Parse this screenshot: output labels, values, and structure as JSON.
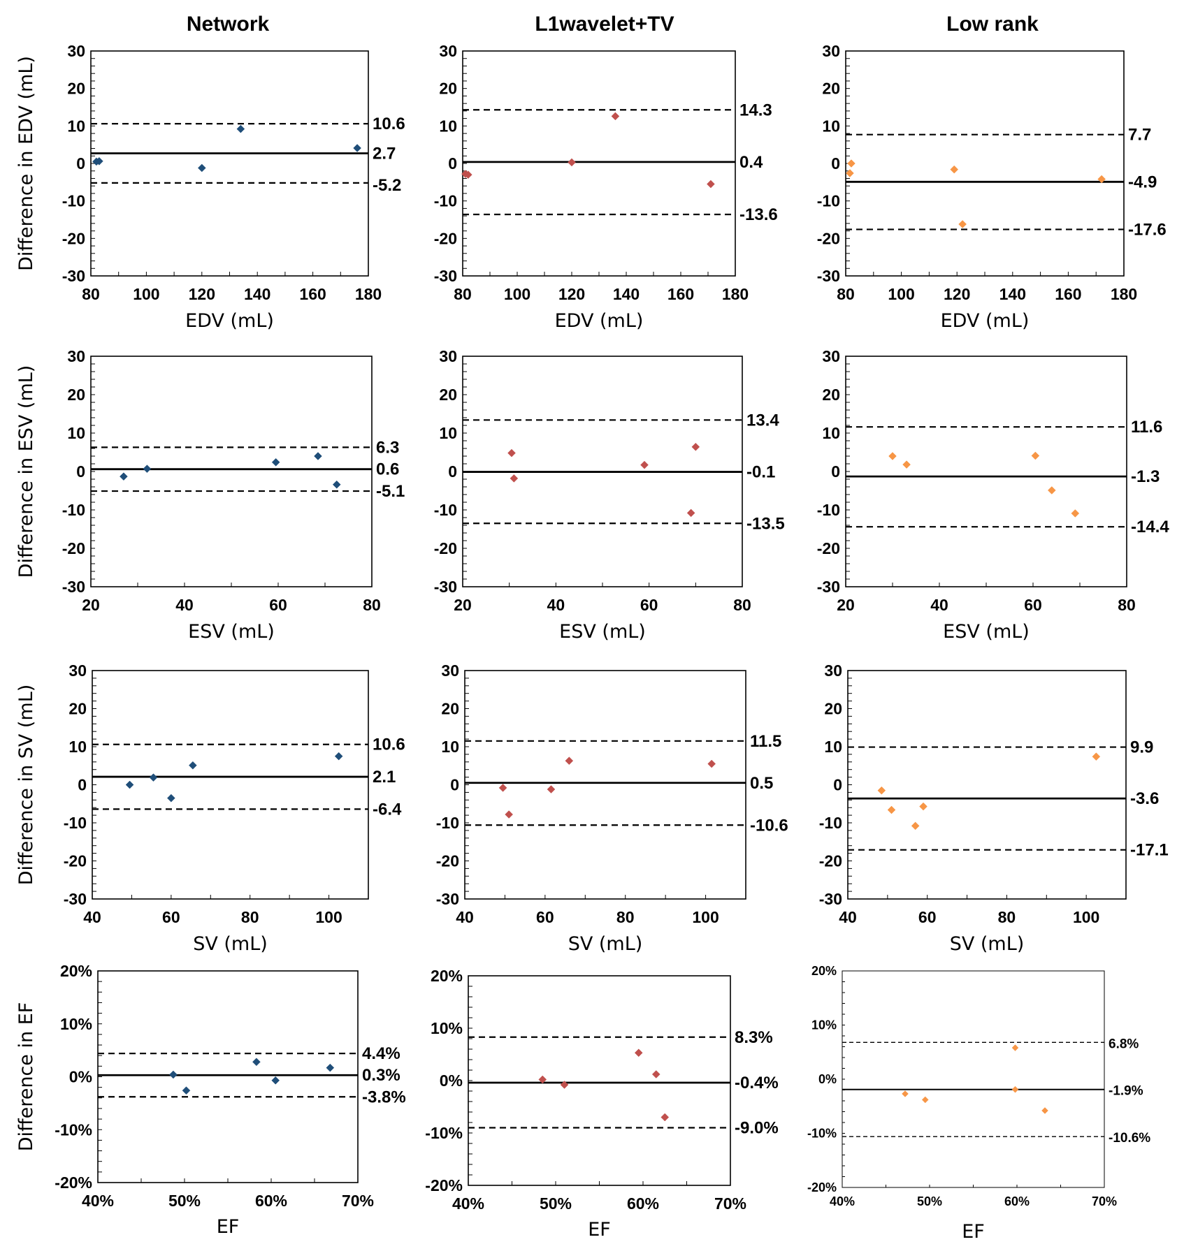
{
  "figure": {
    "columns": [
      "Network",
      "L1wavelet+TV",
      "Low rank"
    ]
  },
  "colors": {
    "network": "#1f4e79",
    "l1wavelet_tv": "#c0504d",
    "low_rank": "#f79646",
    "axis": "#000000"
  },
  "chart_data": [
    {
      "type": "scatter",
      "metric": "EDV",
      "method": "Network",
      "color_key": "network",
      "xlabel": "EDV (mL)",
      "ylabel": "Difference in EDV (mL)",
      "xlim": [
        80,
        180
      ],
      "ylim": [
        -30,
        30
      ],
      "xticks": [
        80,
        100,
        120,
        140,
        160,
        180
      ],
      "xtick_labels": [
        "80",
        "100",
        "120",
        "140",
        "160",
        "180"
      ],
      "yticks": [
        -30,
        -20,
        -10,
        0,
        10,
        20,
        30
      ],
      "ytick_labels": [
        "-30",
        "-20",
        "-10",
        "0",
        "10",
        "20",
        "30"
      ],
      "points": {
        "x": [
          82,
          83,
          120,
          134,
          176
        ],
        "y": [
          0.5,
          0.6,
          -1.2,
          9.2,
          4.1
        ]
      },
      "mean": {
        "value": 2.7,
        "label": "2.7"
      },
      "upper": {
        "value": 10.6,
        "label": "10.6"
      },
      "lower": {
        "value": -5.2,
        "label": "-5.2"
      }
    },
    {
      "type": "scatter",
      "metric": "EDV",
      "method": "L1wavelet+TV",
      "color_key": "l1wavelet_tv",
      "xlabel": "EDV (mL)",
      "ylabel": "",
      "xlim": [
        80,
        180
      ],
      "ylim": [
        -30,
        30
      ],
      "xticks": [
        80,
        100,
        120,
        140,
        160,
        180
      ],
      "xtick_labels": [
        "80",
        "100",
        "120",
        "140",
        "160",
        "180"
      ],
      "yticks": [
        -30,
        -20,
        -10,
        0,
        10,
        20,
        30
      ],
      "ytick_labels": [
        "-30",
        "-20",
        "-10",
        "0",
        "10",
        "20",
        "30"
      ],
      "points": {
        "x": [
          81,
          82,
          120,
          136,
          171
        ],
        "y": [
          -2.8,
          -3.0,
          0.3,
          12.6,
          -5.5
        ]
      },
      "mean": {
        "value": 0.4,
        "label": "0.4"
      },
      "upper": {
        "value": 14.3,
        "label": "14.3"
      },
      "lower": {
        "value": -13.6,
        "label": "-13.6"
      }
    },
    {
      "type": "scatter",
      "metric": "EDV",
      "method": "Low rank",
      "color_key": "low_rank",
      "xlabel": "EDV (mL)",
      "ylabel": "",
      "xlim": [
        80,
        180
      ],
      "ylim": [
        -30,
        30
      ],
      "xticks": [
        80,
        100,
        120,
        140,
        160,
        180
      ],
      "xtick_labels": [
        "80",
        "100",
        "120",
        "140",
        "160",
        "180"
      ],
      "yticks": [
        -30,
        -20,
        -10,
        0,
        10,
        20,
        30
      ],
      "ytick_labels": [
        "-30",
        "-20",
        "-10",
        "0",
        "10",
        "20",
        "30"
      ],
      "points": {
        "x": [
          82,
          81.5,
          119,
          122,
          172
        ],
        "y": [
          0.0,
          -2.6,
          -1.6,
          -16.2,
          -4.2
        ]
      },
      "mean": {
        "value": -4.9,
        "label": "-4.9"
      },
      "upper": {
        "value": 7.7,
        "label": "7.7"
      },
      "lower": {
        "value": -17.6,
        "label": "-17.6"
      }
    },
    {
      "type": "scatter",
      "metric": "ESV",
      "method": "Network",
      "color_key": "network",
      "xlabel": "ESV (mL)",
      "ylabel": "Difference in ESV (mL)",
      "xlim": [
        20,
        80
      ],
      "ylim": [
        -30,
        30
      ],
      "xticks": [
        20,
        40,
        60,
        80
      ],
      "xtick_labels": [
        "20",
        "40",
        "60",
        "80"
      ],
      "yticks": [
        -30,
        -20,
        -10,
        0,
        10,
        20,
        30
      ],
      "ytick_labels": [
        "-30",
        "-20",
        "-10",
        "0",
        "10",
        "20",
        "30"
      ],
      "points": {
        "x": [
          27,
          32,
          59.5,
          68.5,
          72.5
        ],
        "y": [
          -1.3,
          0.7,
          2.4,
          4.0,
          -3.4
        ]
      },
      "mean": {
        "value": 0.6,
        "label": "0.6"
      },
      "upper": {
        "value": 6.3,
        "label": "6.3"
      },
      "lower": {
        "value": -5.1,
        "label": "-5.1"
      }
    },
    {
      "type": "scatter",
      "metric": "ESV",
      "method": "L1wavelet+TV",
      "color_key": "l1wavelet_tv",
      "xlabel": "ESV (mL)",
      "ylabel": "",
      "xlim": [
        20,
        80
      ],
      "ylim": [
        -30,
        30
      ],
      "xticks": [
        20,
        40,
        60,
        80
      ],
      "xtick_labels": [
        "20",
        "40",
        "60",
        "80"
      ],
      "yticks": [
        -30,
        -20,
        -10,
        0,
        10,
        20,
        30
      ],
      "ytick_labels": [
        "-30",
        "-20",
        "-10",
        "0",
        "10",
        "20",
        "30"
      ],
      "points": {
        "x": [
          30.5,
          31,
          59,
          69,
          70
        ],
        "y": [
          4.8,
          -1.8,
          1.7,
          -10.8,
          6.4
        ]
      },
      "mean": {
        "value": -0.1,
        "label": "-0.1"
      },
      "upper": {
        "value": 13.4,
        "label": "13.4"
      },
      "lower": {
        "value": -13.5,
        "label": "-13.5"
      }
    },
    {
      "type": "scatter",
      "metric": "ESV",
      "method": "Low rank",
      "color_key": "low_rank",
      "xlabel": "ESV (mL)",
      "ylabel": "",
      "xlim": [
        20,
        80
      ],
      "ylim": [
        -30,
        30
      ],
      "xticks": [
        20,
        40,
        60,
        80
      ],
      "xtick_labels": [
        "20",
        "40",
        "60",
        "80"
      ],
      "yticks": [
        -30,
        -20,
        -10,
        0,
        10,
        20,
        30
      ],
      "ytick_labels": [
        "-30",
        "-20",
        "-10",
        "0",
        "10",
        "20",
        "30"
      ],
      "points": {
        "x": [
          30,
          33,
          60.5,
          64,
          69
        ],
        "y": [
          4.0,
          1.8,
          4.1,
          -4.9,
          -10.9
        ]
      },
      "mean": {
        "value": -1.3,
        "label": "-1.3"
      },
      "upper": {
        "value": 11.6,
        "label": "11.6"
      },
      "lower": {
        "value": -14.4,
        "label": "-14.4"
      }
    },
    {
      "type": "scatter",
      "metric": "SV",
      "method": "Network",
      "color_key": "network",
      "xlabel": "SV (mL)",
      "ylabel": "Difference in SV (mL)",
      "xlim": [
        40,
        110
      ],
      "ylim": [
        -30,
        30
      ],
      "xticks": [
        40,
        60,
        80,
        100
      ],
      "xtick_labels": [
        "40",
        "60",
        "80",
        "100"
      ],
      "yticks": [
        -30,
        -20,
        -10,
        0,
        10,
        20,
        30
      ],
      "ytick_labels": [
        "-30",
        "-20",
        "-10",
        "0",
        "10",
        "20",
        "30"
      ],
      "points": {
        "x": [
          49.5,
          55.5,
          60,
          65.5,
          102.5
        ],
        "y": [
          0.0,
          1.9,
          -3.5,
          5.1,
          7.5
        ]
      },
      "mean": {
        "value": 2.1,
        "label": "2.1"
      },
      "upper": {
        "value": 10.6,
        "label": "10.6"
      },
      "lower": {
        "value": -6.4,
        "label": "-6.4"
      }
    },
    {
      "type": "scatter",
      "metric": "SV",
      "method": "L1wavelet+TV",
      "color_key": "l1wavelet_tv",
      "xlabel": "SV (mL)",
      "ylabel": "",
      "xlim": [
        40,
        110
      ],
      "ylim": [
        -30,
        30
      ],
      "xticks": [
        40,
        60,
        80,
        100
      ],
      "xtick_labels": [
        "40",
        "60",
        "80",
        "100"
      ],
      "yticks": [
        -30,
        -20,
        -10,
        0,
        10,
        20,
        30
      ],
      "ytick_labels": [
        "-30",
        "-20",
        "-10",
        "0",
        "10",
        "20",
        "30"
      ],
      "points": {
        "x": [
          49.5,
          51,
          61.5,
          66,
          101.5
        ],
        "y": [
          -0.8,
          -7.8,
          -1.2,
          6.3,
          5.5
        ]
      },
      "mean": {
        "value": 0.5,
        "label": "0.5"
      },
      "upper": {
        "value": 11.5,
        "label": "11.5"
      },
      "lower": {
        "value": -10.6,
        "label": "-10.6"
      }
    },
    {
      "type": "scatter",
      "metric": "SV",
      "method": "Low rank",
      "color_key": "low_rank",
      "xlabel": "SV (mL)",
      "ylabel": "",
      "xlim": [
        40,
        110
      ],
      "ylim": [
        -30,
        30
      ],
      "xticks": [
        40,
        60,
        80,
        100
      ],
      "xtick_labels": [
        "40",
        "60",
        "80",
        "100"
      ],
      "yticks": [
        -30,
        -20,
        -10,
        0,
        10,
        20,
        30
      ],
      "ytick_labels": [
        "-30",
        "-20",
        "-10",
        "0",
        "10",
        "20",
        "30"
      ],
      "points": {
        "x": [
          48.5,
          51,
          57,
          59,
          102.5
        ],
        "y": [
          -1.5,
          -6.6,
          -10.8,
          -5.7,
          7.4
        ]
      },
      "mean": {
        "value": -3.6,
        "label": "-3.6"
      },
      "upper": {
        "value": 9.9,
        "label": "9.9"
      },
      "lower": {
        "value": -17.1,
        "label": "-17.1"
      }
    },
    {
      "type": "scatter",
      "metric": "EF",
      "method": "Network",
      "color_key": "network",
      "xlabel": "EF",
      "ylabel": "Difference in EF",
      "xlim": [
        40,
        70
      ],
      "ylim": [
        -20,
        20
      ],
      "xticks": [
        40,
        50,
        60,
        70
      ],
      "xtick_labels": [
        "40%",
        "50%",
        "60%",
        "70%"
      ],
      "yticks": [
        -20,
        -10,
        0,
        10,
        20
      ],
      "ytick_labels": [
        "-20%",
        "-10%",
        "0%",
        "10%",
        "20%"
      ],
      "points": {
        "x": [
          48.7,
          50.2,
          58.3,
          60.5,
          66.8
        ],
        "y": [
          0.4,
          -2.6,
          2.8,
          -0.7,
          1.7
        ]
      },
      "mean": {
        "value": 0.3,
        "label": "0.3%"
      },
      "upper": {
        "value": 4.4,
        "label": "4.4%"
      },
      "lower": {
        "value": -3.8,
        "label": "-3.8%"
      }
    },
    {
      "type": "scatter",
      "metric": "EF",
      "method": "L1wavelet+TV",
      "color_key": "l1wavelet_tv",
      "xlabel": "EF",
      "ylabel": "",
      "xlim": [
        40,
        70
      ],
      "ylim": [
        -20,
        20
      ],
      "xticks": [
        40,
        50,
        60,
        70
      ],
      "xtick_labels": [
        "40%",
        "50%",
        "60%",
        "70%"
      ],
      "yticks": [
        -20,
        -10,
        0,
        10,
        20
      ],
      "ytick_labels": [
        "-20%",
        "-10%",
        "0%",
        "10%",
        "20%"
      ],
      "points": {
        "x": [
          48.5,
          51,
          59.5,
          61.5,
          62.5
        ],
        "y": [
          0.2,
          -0.8,
          5.3,
          1.2,
          -7.0
        ]
      },
      "mean": {
        "value": -0.4,
        "label": "-0.4%"
      },
      "upper": {
        "value": 8.3,
        "label": "8.3%"
      },
      "lower": {
        "value": -9.0,
        "label": "-9.0%"
      }
    },
    {
      "type": "scatter",
      "metric": "EF",
      "method": "Low rank",
      "color_key": "low_rank",
      "xlabel": "EF",
      "ylabel": "",
      "xlim": [
        40,
        70
      ],
      "ylim": [
        -20,
        20
      ],
      "xticks": [
        40,
        50,
        60,
        70
      ],
      "xtick_labels": [
        "40%",
        "50%",
        "60%",
        "70%"
      ],
      "yticks": [
        -20,
        -10,
        0,
        10,
        20
      ],
      "ytick_labels": [
        "-20%",
        "-10%",
        "0%",
        "10%",
        "20%"
      ],
      "points": {
        "x": [
          47.2,
          49.5,
          59.8,
          59.8,
          63.2
        ],
        "y": [
          -2.7,
          -3.8,
          5.8,
          -1.9,
          -5.8
        ]
      },
      "mean": {
        "value": -1.9,
        "label": "-1.9%"
      },
      "upper": {
        "value": 6.8,
        "label": "6.8%"
      },
      "lower": {
        "value": -10.6,
        "label": "-10.6%"
      }
    }
  ]
}
